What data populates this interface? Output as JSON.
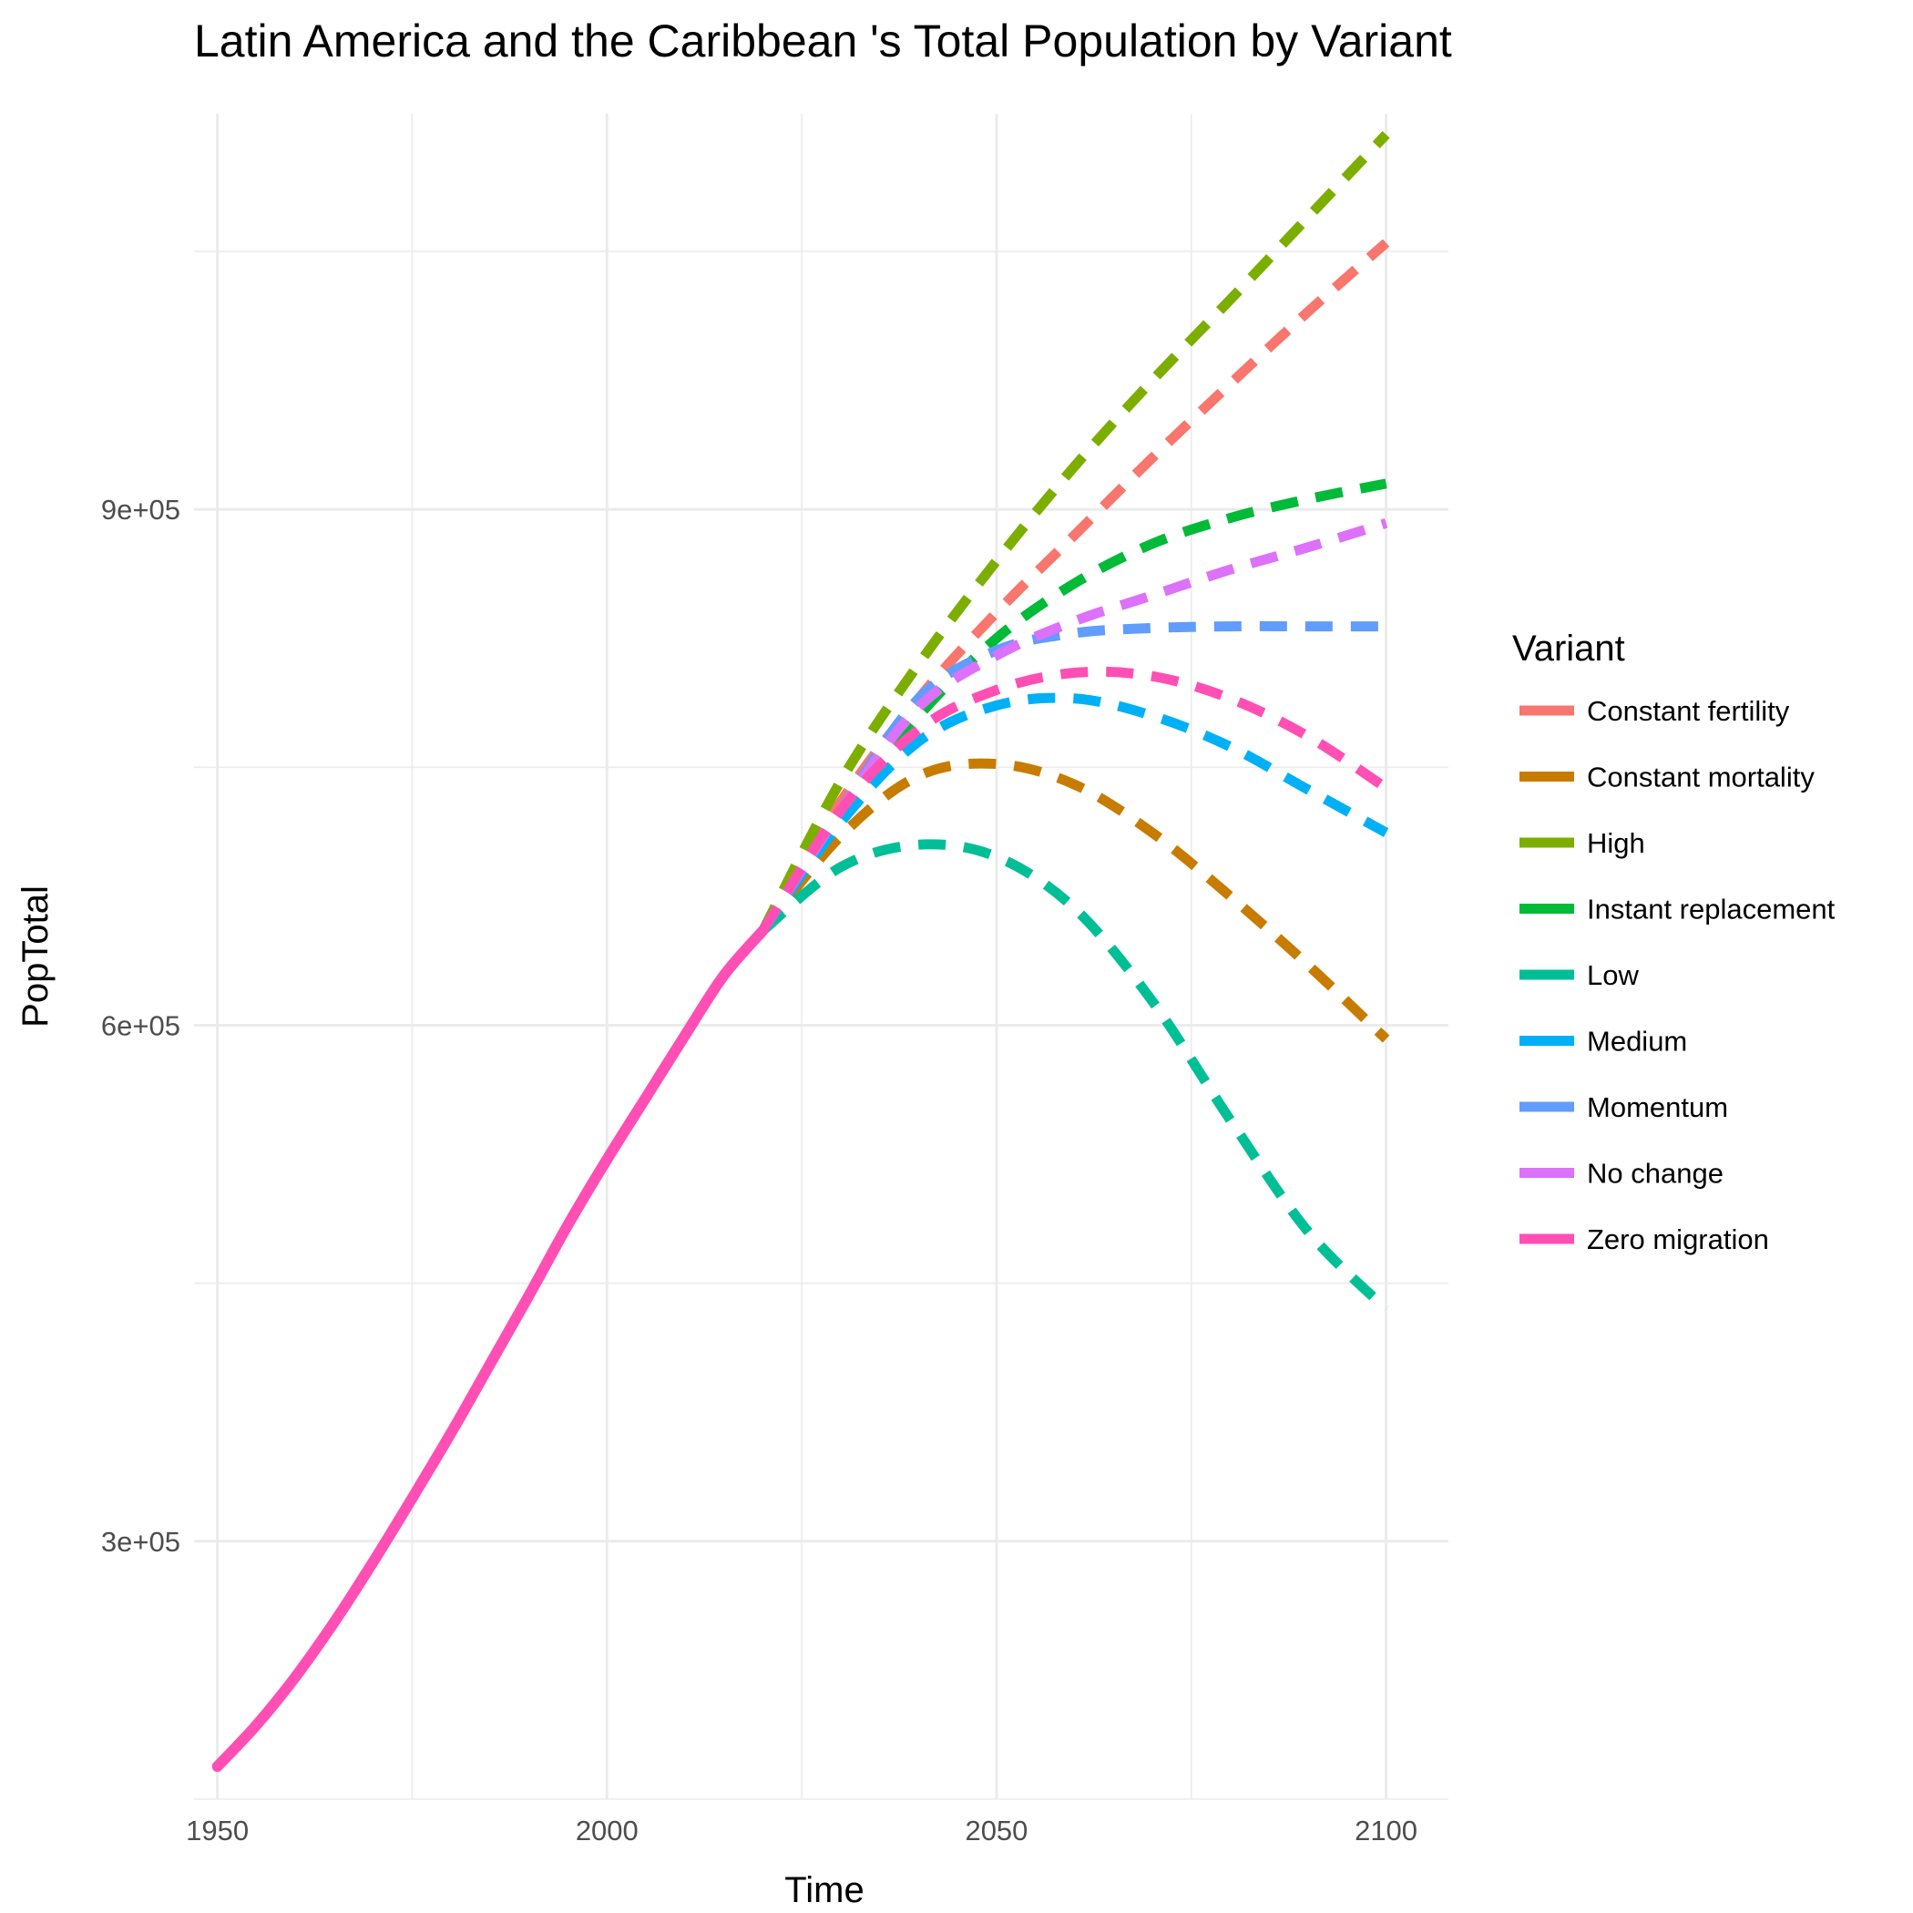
{
  "chart_data": {
    "type": "line",
    "title": "Latin America and the Caribbean 's Total Population by Variant",
    "xlabel": "Time",
    "ylabel": "PopTotal",
    "xlim": [
      1947,
      2108
    ],
    "ylim": [
      150000,
      1130000
    ],
    "x_ticks": [
      {
        "value": 1950,
        "label": "1950"
      },
      {
        "value": 2000,
        "label": "2000"
      },
      {
        "value": 2050,
        "label": "2050"
      },
      {
        "value": 2100,
        "label": "2100"
      }
    ],
    "y_ticks": [
      {
        "value": 300000,
        "label": "3e+05"
      },
      {
        "value": 600000,
        "label": "6e+05"
      },
      {
        "value": 900000,
        "label": "9e+05"
      }
    ],
    "grid": true,
    "legend": {
      "title": "Variant",
      "position": "right"
    },
    "historical": {
      "color": "#FF4FB4",
      "x": [
        1950,
        1955,
        1960,
        1965,
        1970,
        1975,
        1980,
        1985,
        1990,
        1995,
        2000,
        2005,
        2010,
        2015,
        2020
      ],
      "y": [
        169000,
        193000,
        221000,
        253000,
        288000,
        325000,
        363000,
        403000,
        443000,
        484000,
        522000,
        558000,
        594000,
        629000,
        655000
      ]
    },
    "series": [
      {
        "name": "Constant fertility",
        "color": "#F8766D",
        "x": [
          2020,
          2030,
          2040,
          2050,
          2060,
          2070,
          2080,
          2090,
          2100
        ],
        "y": [
          655000,
          730000,
          790000,
          840000,
          885000,
          930000,
          973000,
          1015000,
          1055000
        ]
      },
      {
        "name": "Constant mortality",
        "color": "#C77C00",
        "x": [
          2020,
          2030,
          2040,
          2050,
          2060,
          2070,
          2080,
          2090,
          2100
        ],
        "y": [
          655000,
          710000,
          745000,
          752000,
          740000,
          712000,
          675000,
          635000,
          592000
        ]
      },
      {
        "name": "High",
        "color": "#7CAE00",
        "x": [
          2020,
          2030,
          2040,
          2050,
          2060,
          2070,
          2080,
          2090,
          2100
        ],
        "y": [
          655000,
          742000,
          810000,
          870000,
          925000,
          975000,
          1022000,
          1070000,
          1118000
        ]
      },
      {
        "name": "Instant replacement",
        "color": "#00BA38",
        "x": [
          2020,
          2030,
          2040,
          2050,
          2060,
          2070,
          2080,
          2090,
          2100
        ],
        "y": [
          655000,
          725000,
          780000,
          825000,
          857000,
          880000,
          895000,
          906000,
          915000
        ]
      },
      {
        "name": "Low",
        "color": "#00BF96",
        "x": [
          2020,
          2030,
          2040,
          2050,
          2060,
          2070,
          2080,
          2090,
          2100
        ],
        "y": [
          655000,
          692000,
          705000,
          698000,
          668000,
          614000,
          545000,
          480000,
          435000
        ]
      },
      {
        "name": "Medium",
        "color": "#00B0F6",
        "x": [
          2020,
          2030,
          2040,
          2050,
          2060,
          2070,
          2080,
          2090,
          2100
        ],
        "y": [
          655000,
          718000,
          765000,
          786000,
          790000,
          780000,
          762000,
          737000,
          712000
        ]
      },
      {
        "name": "Momentum",
        "color": "#619CFF",
        "x": [
          2020,
          2030,
          2040,
          2050,
          2060,
          2070,
          2080,
          2090,
          2100
        ],
        "y": [
          655000,
          725000,
          790000,
          818000,
          828000,
          831000,
          832000,
          832000,
          832000
        ]
      },
      {
        "name": "No change",
        "color": "#DC71FA",
        "x": [
          2020,
          2030,
          2040,
          2050,
          2060,
          2070,
          2080,
          2090,
          2100
        ],
        "y": [
          655000,
          725000,
          785000,
          815000,
          835000,
          850000,
          865000,
          878000,
          892000
        ]
      },
      {
        "name": "Zero migration",
        "color": "#FF4FB4",
        "x": [
          2020,
          2030,
          2040,
          2050,
          2060,
          2070,
          2080,
          2090,
          2100
        ],
        "y": [
          655000,
          725000,
          772000,
          795000,
          805000,
          803000,
          790000,
          768000,
          738000
        ]
      }
    ]
  }
}
